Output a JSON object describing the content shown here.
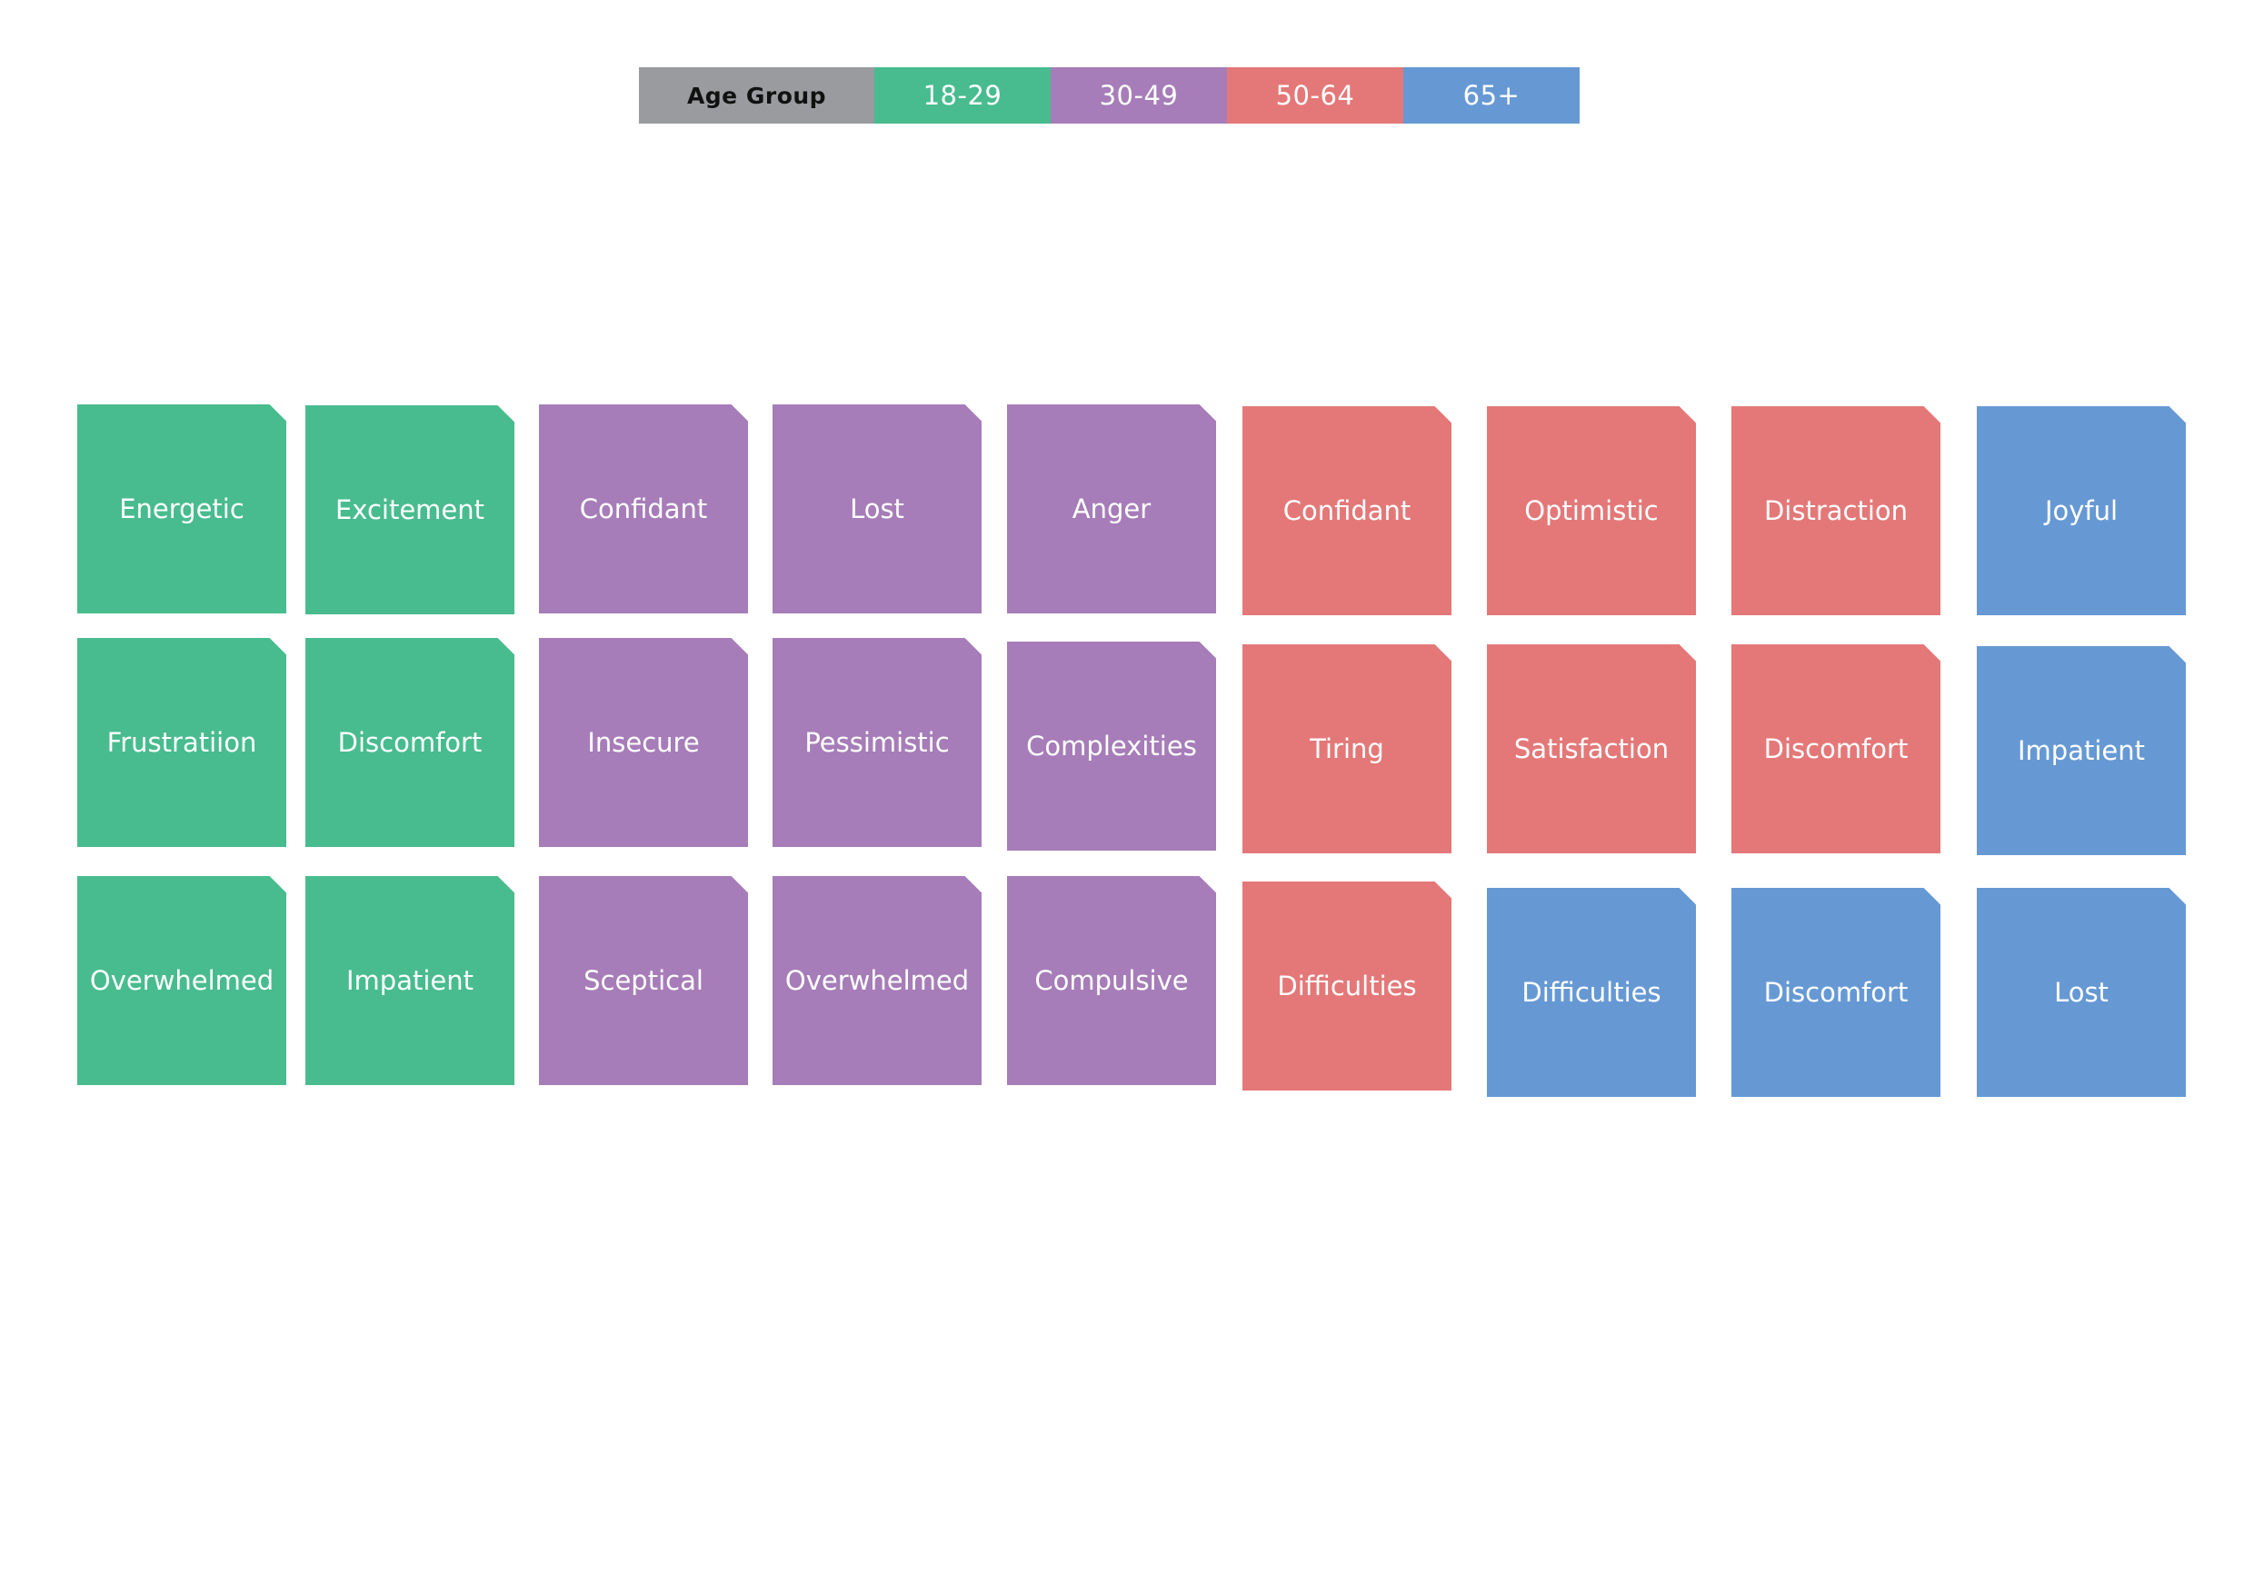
{
  "legend": {
    "title": "Age Group",
    "groups": [
      {
        "label": "18-29",
        "color": "#48BC8E"
      },
      {
        "label": "30-49",
        "color": "#A67DB8"
      },
      {
        "label": "50-64",
        "color": "#E47878"
      },
      {
        "label": "65+",
        "color": "#6699D4"
      }
    ],
    "title_color": "#9A9B9E"
  },
  "notes": [
    {
      "label": "Energetic",
      "group": "18-29"
    },
    {
      "label": "Excitement",
      "group": "18-29"
    },
    {
      "label": "Confidant",
      "group": "30-49"
    },
    {
      "label": "Lost",
      "group": "30-49"
    },
    {
      "label": "Anger",
      "group": "30-49"
    },
    {
      "label": "Confidant",
      "group": "50-64"
    },
    {
      "label": "Optimistic",
      "group": "50-64"
    },
    {
      "label": "Distraction",
      "group": "50-64"
    },
    {
      "label": "Joyful",
      "group": "65+"
    },
    {
      "label": "Frustratiion",
      "group": "18-29"
    },
    {
      "label": "Discomfort",
      "group": "18-29"
    },
    {
      "label": "Insecure",
      "group": "30-49"
    },
    {
      "label": "Pessimistic",
      "group": "30-49"
    },
    {
      "label": "Complexities",
      "group": "30-49"
    },
    {
      "label": "Tiring",
      "group": "50-64"
    },
    {
      "label": "Satisfaction",
      "group": "50-64"
    },
    {
      "label": "Discomfort",
      "group": "50-64"
    },
    {
      "label": "Impatient",
      "group": "65+"
    },
    {
      "label": "Overwhelmed",
      "group": "18-29"
    },
    {
      "label": "Impatient",
      "group": "18-29"
    },
    {
      "label": "Sceptical",
      "group": "30-49"
    },
    {
      "label": "Overwhelmed",
      "group": "30-49"
    },
    {
      "label": "Compulsive",
      "group": "30-49"
    },
    {
      "label": "Difficulties",
      "group": "50-64"
    },
    {
      "label": "Difficulties",
      "group": "65+"
    },
    {
      "label": "Discomfort",
      "group": "65+"
    },
    {
      "label": "Lost",
      "group": "65+"
    }
  ]
}
